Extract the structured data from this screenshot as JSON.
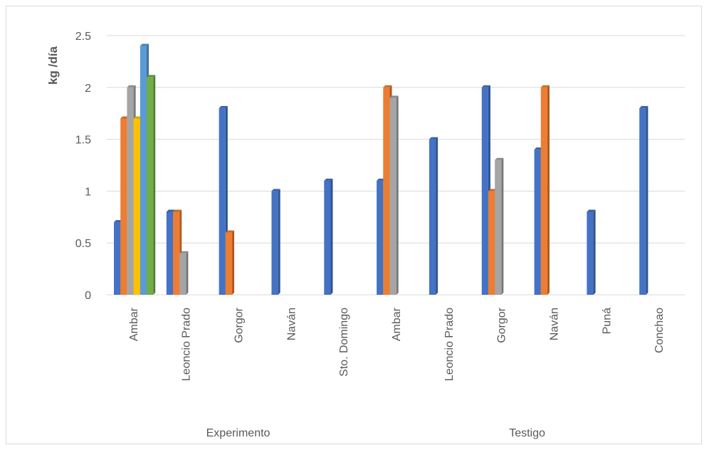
{
  "chart_data": {
    "type": "bar",
    "ylabel": "kg /día",
    "ylim": [
      0,
      2.5
    ],
    "yticks": [
      "0",
      "0.5",
      "1",
      "1.5",
      "2",
      "2.5"
    ],
    "grid": true,
    "legend": "none",
    "series_colors": [
      "#4472c4",
      "#ed7d31",
      "#a5a5a5",
      "#ffc000",
      "#5b9bd5",
      "#70ad47"
    ],
    "groups": [
      {
        "name": "Experimento",
        "categories": [
          {
            "name": "Ambar",
            "values": [
              0.7,
              1.7,
              2.0,
              1.7,
              2.4,
              2.1
            ]
          },
          {
            "name": "Leoncio Prado",
            "values": [
              0.8,
              0.8,
              0.4
            ]
          },
          {
            "name": "Gorgor",
            "values": [
              1.8,
              0.6
            ]
          },
          {
            "name": "Naván",
            "values": [
              1.0
            ]
          },
          {
            "name": "Sto. Domingo",
            "values": [
              1.1
            ]
          }
        ]
      },
      {
        "name": "Testigo",
        "categories": [
          {
            "name": "Ambar",
            "values": [
              1.1,
              2.0,
              1.9
            ]
          },
          {
            "name": "Leoncio Prado",
            "values": [
              1.5
            ]
          },
          {
            "name": "Gorgor",
            "values": [
              2.0,
              1.0,
              1.3
            ]
          },
          {
            "name": "Naván",
            "values": [
              1.4,
              2.0
            ]
          },
          {
            "name": "Puná",
            "values": [
              0.8
            ]
          },
          {
            "name": "Conchao",
            "values": [
              1.8
            ]
          }
        ]
      }
    ]
  }
}
